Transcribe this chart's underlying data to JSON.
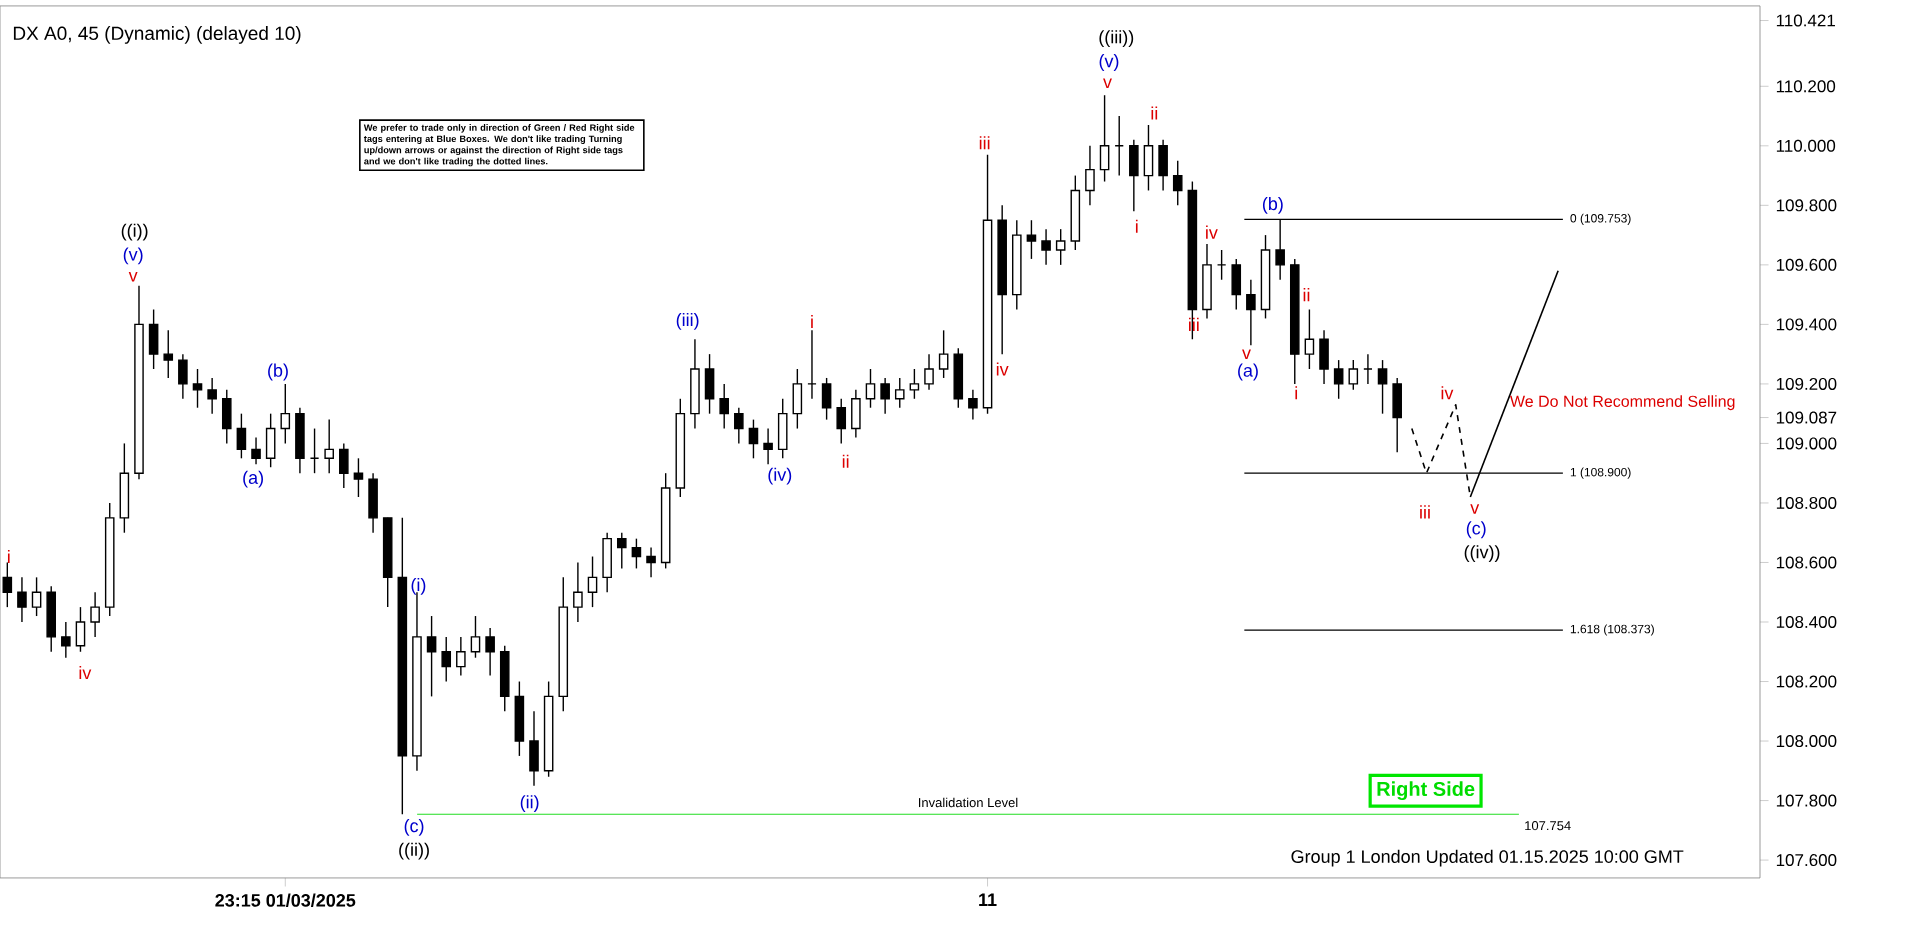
{
  "chart_data": {
    "type": "candlestick",
    "title": "DX A0, 45 (Dynamic) (delayed 10)",
    "categories": [
      null,
      null,
      null,
      null,
      null,
      null,
      null,
      null,
      null,
      null,
      null,
      null,
      null,
      null,
      null,
      null,
      null,
      null,
      null,
      "23:15 01/03/2025",
      null,
      null,
      null,
      null,
      null,
      null,
      null,
      null,
      null,
      null,
      null,
      null,
      null,
      null,
      null,
      null,
      null,
      null,
      null,
      null,
      null,
      null,
      null,
      null,
      null,
      null,
      null,
      null,
      null,
      null,
      null,
      null,
      null,
      null,
      null,
      null,
      null,
      null,
      null,
      null,
      null,
      null,
      null,
      null,
      null,
      null,
      null,
      "11",
      null,
      null,
      null,
      null,
      null,
      null,
      null,
      null,
      null,
      null,
      null,
      null,
      null,
      null,
      null,
      null,
      null,
      null,
      null,
      null,
      null,
      null,
      null,
      null,
      null,
      null,
      null,
      null,
      null,
      null,
      null,
      null,
      null,
      null,
      null,
      null,
      null,
      null,
      null,
      null,
      null,
      null,
      null,
      null,
      null,
      null,
      null,
      null,
      null,
      null,
      null,
      null
    ],
    "ohlc": [
      [
        108.55,
        108.6,
        108.45,
        108.5
      ],
      [
        108.5,
        108.55,
        108.4,
        108.45
      ],
      [
        108.45,
        108.55,
        108.42,
        108.5
      ],
      [
        108.5,
        108.52,
        108.3,
        108.35
      ],
      [
        108.35,
        108.4,
        108.28,
        108.32
      ],
      [
        108.32,
        108.45,
        108.3,
        108.4
      ],
      [
        108.4,
        108.5,
        108.35,
        108.45
      ],
      [
        108.45,
        108.8,
        108.42,
        108.75
      ],
      [
        108.75,
        109.0,
        108.7,
        108.9
      ],
      [
        108.9,
        109.53,
        108.88,
        109.4
      ],
      [
        109.4,
        109.45,
        109.25,
        109.3
      ],
      [
        109.3,
        109.38,
        109.22,
        109.28
      ],
      [
        109.28,
        109.3,
        109.15,
        109.2
      ],
      [
        109.2,
        109.25,
        109.12,
        109.18
      ],
      [
        109.18,
        109.22,
        109.1,
        109.15
      ],
      [
        109.15,
        109.18,
        109.0,
        109.05
      ],
      [
        109.05,
        109.1,
        108.95,
        108.98
      ],
      [
        108.98,
        109.02,
        108.93,
        108.95
      ],
      [
        108.95,
        109.1,
        108.92,
        109.05
      ],
      [
        109.05,
        109.2,
        109.0,
        109.1
      ],
      [
        109.1,
        109.12,
        108.9,
        108.95
      ],
      [
        108.95,
        109.05,
        108.9,
        108.95
      ],
      [
        108.95,
        109.08,
        108.9,
        108.98
      ],
      [
        108.98,
        109.0,
        108.85,
        108.9
      ],
      [
        108.9,
        108.95,
        108.82,
        108.88
      ],
      [
        108.88,
        108.9,
        108.7,
        108.75
      ],
      [
        108.75,
        108.75,
        108.45,
        108.55
      ],
      [
        108.55,
        108.75,
        107.754,
        107.95
      ],
      [
        107.95,
        108.5,
        107.9,
        108.35
      ],
      [
        108.35,
        108.42,
        108.15,
        108.3
      ],
      [
        108.3,
        108.35,
        108.2,
        108.25
      ],
      [
        108.25,
        108.35,
        108.22,
        108.3
      ],
      [
        108.3,
        108.42,
        108.28,
        108.35
      ],
      [
        108.35,
        108.38,
        108.22,
        108.3
      ],
      [
        108.3,
        108.32,
        108.1,
        108.15
      ],
      [
        108.15,
        108.2,
        107.95,
        108.0
      ],
      [
        108.0,
        108.1,
        107.85,
        107.9
      ],
      [
        107.9,
        108.2,
        107.88,
        108.15
      ],
      [
        108.15,
        108.55,
        108.1,
        108.45
      ],
      [
        108.45,
        108.6,
        108.4,
        108.5
      ],
      [
        108.5,
        108.62,
        108.45,
        108.55
      ],
      [
        108.55,
        108.7,
        108.5,
        108.68
      ],
      [
        108.68,
        108.7,
        108.58,
        108.65
      ],
      [
        108.65,
        108.68,
        108.58,
        108.62
      ],
      [
        108.62,
        108.65,
        108.55,
        108.6
      ],
      [
        108.6,
        108.9,
        108.58,
        108.85
      ],
      [
        108.85,
        109.15,
        108.82,
        109.1
      ],
      [
        109.1,
        109.35,
        109.05,
        109.25
      ],
      [
        109.25,
        109.3,
        109.1,
        109.15
      ],
      [
        109.15,
        109.2,
        109.05,
        109.1
      ],
      [
        109.1,
        109.12,
        109.0,
        109.05
      ],
      [
        109.05,
        109.08,
        108.95,
        109.0
      ],
      [
        109.0,
        109.05,
        108.93,
        108.98
      ],
      [
        108.98,
        109.15,
        108.95,
        109.1
      ],
      [
        109.1,
        109.25,
        109.05,
        109.2
      ],
      [
        109.2,
        109.38,
        109.15,
        109.2
      ],
      [
        109.2,
        109.22,
        109.08,
        109.12
      ],
      [
        109.12,
        109.15,
        109.0,
        109.05
      ],
      [
        109.05,
        109.18,
        109.02,
        109.15
      ],
      [
        109.15,
        109.25,
        109.12,
        109.2
      ],
      [
        109.2,
        109.22,
        109.1,
        109.15
      ],
      [
        109.15,
        109.22,
        109.12,
        109.18
      ],
      [
        109.18,
        109.25,
        109.15,
        109.2
      ],
      [
        109.2,
        109.3,
        109.18,
        109.25
      ],
      [
        109.25,
        109.38,
        109.22,
        109.3
      ],
      [
        109.3,
        109.32,
        109.12,
        109.15
      ],
      [
        109.15,
        109.18,
        109.08,
        109.12
      ],
      [
        109.12,
        109.97,
        109.1,
        109.75
      ],
      [
        109.75,
        109.8,
        109.3,
        109.5
      ],
      [
        109.5,
        109.75,
        109.45,
        109.7
      ],
      [
        109.7,
        109.75,
        109.62,
        109.68
      ],
      [
        109.68,
        109.72,
        109.6,
        109.65
      ],
      [
        109.65,
        109.72,
        109.6,
        109.68
      ],
      [
        109.68,
        109.9,
        109.65,
        109.85
      ],
      [
        109.85,
        110.0,
        109.8,
        109.92
      ],
      [
        109.92,
        110.17,
        109.88,
        110.0
      ],
      [
        110.0,
        110.1,
        109.9,
        110.0
      ],
      [
        110.0,
        110.02,
        109.78,
        109.9
      ],
      [
        109.9,
        110.07,
        109.85,
        110.0
      ],
      [
        110.0,
        110.02,
        109.85,
        109.9
      ],
      [
        109.9,
        109.95,
        109.8,
        109.85
      ],
      [
        109.85,
        109.88,
        109.35,
        109.45
      ],
      [
        109.45,
        109.67,
        109.42,
        109.6
      ],
      [
        109.6,
        109.65,
        109.55,
        109.6
      ],
      [
        109.6,
        109.62,
        109.45,
        109.5
      ],
      [
        109.5,
        109.55,
        109.33,
        109.45
      ],
      [
        109.45,
        109.7,
        109.42,
        109.65
      ],
      [
        109.65,
        109.753,
        109.55,
        109.6
      ],
      [
        109.6,
        109.62,
        109.2,
        109.3
      ],
      [
        109.3,
        109.45,
        109.25,
        109.35
      ],
      [
        109.35,
        109.38,
        109.2,
        109.25
      ],
      [
        109.25,
        109.28,
        109.15,
        109.2
      ],
      [
        109.2,
        109.28,
        109.18,
        109.25
      ],
      [
        109.25,
        109.3,
        109.2,
        109.25
      ],
      [
        109.25,
        109.28,
        109.1,
        109.2
      ],
      [
        109.2,
        109.22,
        108.97,
        109.087
      ],
      null,
      null,
      null,
      null,
      null,
      null,
      null,
      null,
      null,
      null,
      null,
      null,
      null,
      null,
      null,
      null,
      null,
      null,
      null,
      null,
      null,
      null,
      null,
      null
    ],
    "series": [
      {
        "type": "line",
        "line_style": "dashed",
        "color": "#000000",
        "values": [
          null,
          null,
          null,
          null,
          null,
          null,
          null,
          null,
          null,
          null,
          null,
          null,
          null,
          null,
          null,
          null,
          null,
          null,
          null,
          null,
          null,
          null,
          null,
          null,
          null,
          null,
          null,
          null,
          null,
          null,
          null,
          null,
          null,
          null,
          null,
          null,
          null,
          null,
          null,
          null,
          null,
          null,
          null,
          null,
          null,
          null,
          null,
          null,
          null,
          null,
          null,
          null,
          null,
          null,
          null,
          null,
          null,
          null,
          null,
          null,
          null,
          null,
          null,
          null,
          null,
          null,
          null,
          null,
          null,
          null,
          null,
          null,
          null,
          null,
          null,
          null,
          null,
          null,
          null,
          null,
          null,
          null,
          null,
          null,
          null,
          null,
          null,
          null,
          null,
          null,
          null,
          null,
          null,
          null,
          null,
          null,
          109.05,
          108.9,
          null,
          109.13,
          108.82,
          null,
          null,
          null,
          null,
          null,
          null,
          null,
          null,
          null,
          null,
          null,
          null,
          null,
          null,
          null,
          null,
          null,
          null,
          null
        ]
      },
      {
        "type": "line",
        "line_style": "solid",
        "color": "#000000",
        "values": [
          null,
          null,
          null,
          null,
          null,
          null,
          null,
          null,
          null,
          null,
          null,
          null,
          null,
          null,
          null,
          null,
          null,
          null,
          null,
          null,
          null,
          null,
          null,
          null,
          null,
          null,
          null,
          null,
          null,
          null,
          null,
          null,
          null,
          null,
          null,
          null,
          null,
          null,
          null,
          null,
          null,
          null,
          null,
          null,
          null,
          null,
          null,
          null,
          null,
          null,
          null,
          null,
          null,
          null,
          null,
          null,
          null,
          null,
          null,
          null,
          null,
          null,
          null,
          null,
          null,
          null,
          null,
          null,
          null,
          null,
          null,
          null,
          null,
          null,
          null,
          null,
          null,
          null,
          null,
          null,
          null,
          null,
          null,
          null,
          null,
          null,
          null,
          null,
          null,
          null,
          null,
          null,
          null,
          null,
          null,
          null,
          null,
          null,
          null,
          null,
          108.82,
          null,
          null,
          null,
          null,
          null,
          109.58,
          null,
          null,
          null,
          null,
          null,
          null,
          null,
          null,
          null,
          null,
          null,
          null,
          null
        ]
      }
    ],
    "ylim": [
      107.54,
      110.47
    ],
    "yticks": [
      {
        "value": 107.6,
        "label": "107.600"
      },
      {
        "value": 107.8,
        "label": "107.800"
      },
      {
        "value": 108.0,
        "label": "108.000"
      },
      {
        "value": 108.2,
        "label": "108.200"
      },
      {
        "value": 108.4,
        "label": "108.400"
      },
      {
        "value": 108.6,
        "label": "108.600"
      },
      {
        "value": 108.8,
        "label": "108.800"
      },
      {
        "value": 109.0,
        "label": "109.000"
      },
      {
        "value": 109.2,
        "label": "109.200"
      },
      {
        "value": 109.4,
        "label": "109.400"
      },
      {
        "value": 109.6,
        "label": "109.600"
      },
      {
        "value": 109.8,
        "label": "109.800"
      },
      {
        "value": 110.0,
        "label": "110.000"
      },
      {
        "value": 110.2,
        "label": "110.200"
      },
      {
        "value": 110.421,
        "label": "110.421"
      },
      {
        "value": 109.087,
        "label": "109.087"
      }
    ],
    "ref_lines": [
      {
        "axis": "y",
        "value": 109.753,
        "label": "0 (109.753)",
        "color": "#000000"
      },
      {
        "axis": "y",
        "value": 108.9,
        "label": "1 (108.900)",
        "color": "#000000"
      },
      {
        "axis": "y",
        "value": 108.373,
        "label": "1.618 (108.373)",
        "color": "#000000"
      },
      {
        "axis": "y",
        "value": 107.754,
        "label": "Invalidation Level",
        "color": "#22dd22"
      }
    ],
    "annotations": [
      "We prefer to trade only in direction of Green / Red Right side tags entering at Blue Boxes. We don't like trading Turning up/down arrows or against the direction of Right side tags and we don't like trading the dotted lines.",
      "We Do Not Recommend Selling",
      "Right Side",
      "Group 1 London Updated 01.15.2025 10:00 GMT",
      "107.754",
      "i",
      "iv",
      "((i))",
      "(v)",
      "v",
      "(a)",
      "(b)",
      "(i)",
      "(c)",
      "((ii))",
      "(ii)",
      "(iii)",
      "(iv)",
      "i",
      "ii",
      "iii",
      "iv",
      "((iii))",
      "(v)",
      "v",
      "ii",
      "i",
      "iv",
      "iii",
      "v",
      "(a)",
      "(b)",
      "ii",
      "i",
      "iii",
      "iv",
      "v",
      "(c)",
      "((iv))"
    ]
  }
}
